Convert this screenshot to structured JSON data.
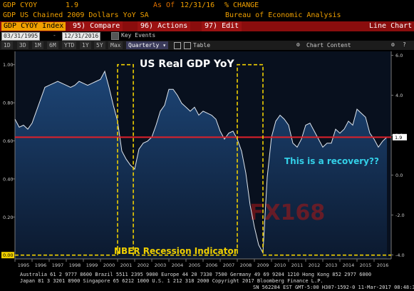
{
  "header": {
    "ticker": "GDP CYOY",
    "last_value": "1.9",
    "as_of_label": "As Of",
    "as_of_date": "12/31/16",
    "unit": "% CHANGE",
    "description": "GDP US Chained 2009 Dollars YoY SA",
    "source": "Bureau of Economic Analysis"
  },
  "menu": {
    "index": "GDP CYOY Index",
    "compare_key": "95)",
    "compare": "Compare",
    "actions_key": "96)",
    "actions": "Actions",
    "edit_key": "97)",
    "edit": "Edit",
    "chart_type": "Line Chart"
  },
  "range": {
    "start": "03/31/1995",
    "end": "12/31/2016",
    "key_events": "Key Events"
  },
  "periods": [
    "1D",
    "3D",
    "1M",
    "6M",
    "YTD",
    "1Y",
    "5Y",
    "Max"
  ],
  "frequency": "Quarterly",
  "table_label": "Table",
  "chart_content_label": "Chart Content",
  "colors": {
    "accent": "#f0a000",
    "menu_bar": "#8a0d0d",
    "plot_bg": "#0c1a30",
    "area_top": "#1f4b80",
    "gdp_line": "#dfe6ee",
    "recession": "#f0d000",
    "recovery_text": "#33d0e8",
    "red_line": "#e0202a",
    "watermark": "#a01818"
  },
  "footer": {
    "line1": "Australia 61 2 9777 8600 Brazil 5511 2395 9000 Europe 44 20 7330 7500 Germany 49 69 9204 1210 Hong Kong 852 2977 6000",
    "line2": "Japan 81 3 3201 8900          Singapore 65 6212 1000          U.S. 1 212 318 2000          Copyright 2017 Bloomberg Finance L.P.",
    "line3": "SN 562284 EST  GMT-5:00 H307-1592-0 11-Mar-2017 08:48:31"
  },
  "chart_data": {
    "type": "line",
    "title": "US Real GDP YoY",
    "annotations": [
      "This is a recovery??",
      "NBER Recession  Indicator"
    ],
    "watermark": "FX168",
    "x_ticks": [
      "1995",
      "1996",
      "1997",
      "1998",
      "1999",
      "2000",
      "2001",
      "2002",
      "2003",
      "2004",
      "2005",
      "2006",
      "2007",
      "2008",
      "2009",
      "2010",
      "2011",
      "2012",
      "2013",
      "2014",
      "2015",
      "2016"
    ],
    "xlim": [
      1995.0,
      2017.0
    ],
    "left_axis": {
      "ticks": [
        "1.00",
        "0.80",
        "0.60",
        "0.40",
        "0.20",
        "0.00"
      ],
      "ylim": [
        -0.02,
        1.07
      ]
    },
    "right_axis": {
      "ticks": [
        "6.0",
        "4.0",
        "2.0",
        "0.0",
        "-2.0",
        "-4.0"
      ],
      "ylim": [
        -4.2,
        6.2
      ]
    },
    "last_value_label": "1.9",
    "series": [
      {
        "name": "GDP CYOY",
        "axis": "right",
        "x": [
          1995.0,
          1995.25,
          1995.5,
          1995.75,
          1996.0,
          1996.25,
          1996.5,
          1996.75,
          1997.0,
          1997.25,
          1997.5,
          1997.75,
          1998.0,
          1998.25,
          1998.5,
          1998.75,
          1999.0,
          1999.25,
          1999.5,
          1999.75,
          2000.0,
          2000.25,
          2000.5,
          2000.75,
          2001.0,
          2001.25,
          2001.5,
          2001.75,
          2002.0,
          2002.25,
          2002.5,
          2002.75,
          2003.0,
          2003.25,
          2003.5,
          2003.75,
          2004.0,
          2004.25,
          2004.5,
          2004.75,
          2005.0,
          2005.25,
          2005.5,
          2005.75,
          2006.0,
          2006.25,
          2006.5,
          2006.75,
          2007.0,
          2007.25,
          2007.5,
          2007.75,
          2008.0,
          2008.25,
          2008.5,
          2008.75,
          2009.0,
          2009.25,
          2009.5,
          2009.75,
          2010.0,
          2010.25,
          2010.5,
          2010.75,
          2011.0,
          2011.25,
          2011.5,
          2011.75,
          2012.0,
          2012.25,
          2012.5,
          2012.75,
          2013.0,
          2013.25,
          2013.5,
          2013.75,
          2014.0,
          2014.25,
          2014.5,
          2014.75,
          2015.0,
          2015.25,
          2015.5,
          2015.75,
          2016.0,
          2016.25,
          2016.5,
          2016.75
        ],
        "y": [
          2.8,
          2.4,
          2.5,
          2.3,
          2.6,
          3.2,
          3.8,
          4.4,
          4.5,
          4.6,
          4.7,
          4.6,
          4.5,
          4.4,
          4.5,
          4.7,
          4.6,
          4.5,
          4.6,
          4.7,
          4.8,
          5.2,
          4.4,
          3.5,
          2.7,
          1.2,
          0.8,
          0.5,
          0.3,
          1.3,
          1.6,
          1.7,
          1.9,
          2.5,
          3.2,
          3.5,
          4.3,
          4.3,
          4.0,
          3.6,
          3.4,
          3.2,
          3.4,
          3.0,
          3.2,
          3.1,
          3.0,
          2.8,
          2.2,
          1.8,
          2.1,
          2.2,
          1.8,
          1.2,
          0.1,
          -1.5,
          -2.6,
          -3.5,
          -3.9,
          -0.1,
          1.9,
          2.7,
          3.0,
          2.8,
          2.5,
          1.6,
          1.4,
          1.8,
          2.5,
          2.6,
          2.2,
          1.8,
          1.4,
          1.6,
          1.6,
          2.3,
          2.1,
          2.3,
          2.7,
          2.5,
          3.3,
          3.1,
          2.9,
          2.1,
          1.8,
          1.4,
          1.7,
          1.9
        ]
      },
      {
        "name": "NBER Recession Indicator",
        "axis": "left",
        "x": [
          1995.0,
          2001.0,
          2001.0,
          2001.92,
          2001.92,
          2008.0,
          2008.0,
          2009.5,
          2009.5,
          2017.0
        ],
        "y": [
          0,
          0,
          1,
          1,
          0,
          0,
          1,
          1,
          0,
          0
        ]
      }
    ],
    "reference_line": {
      "axis": "right",
      "value": 1.9
    },
    "grid": false
  }
}
